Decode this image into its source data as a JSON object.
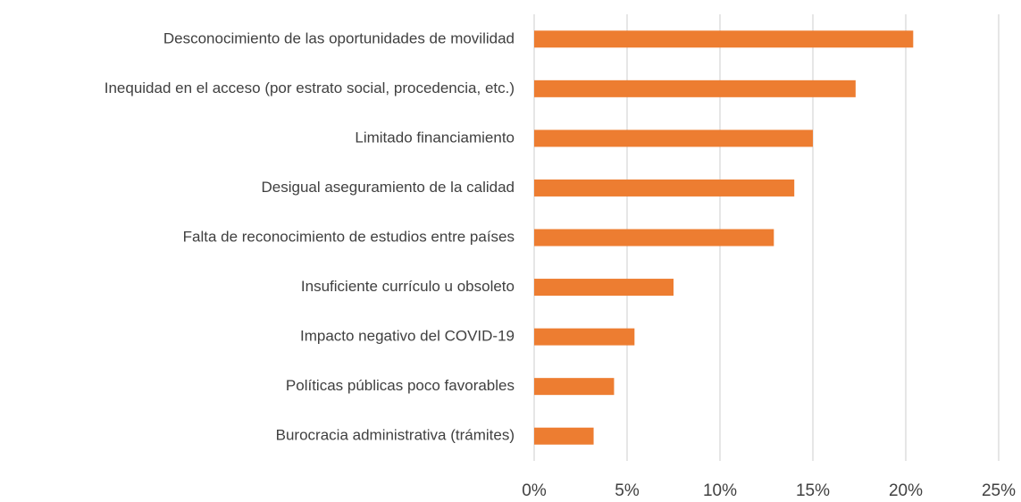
{
  "chart_data": {
    "type": "bar",
    "orientation": "horizontal",
    "categories": [
      "Desconocimiento de las oportunidades de movilidad",
      "Inequidad en el acceso (por estrato social, procedencia, etc.)",
      "Limitado financiamiento",
      "Desigual aseguramiento de la calidad",
      "Falta de reconocimiento de estudios entre países",
      "Insuficiente currículo u obsoleto",
      "Impacto negativo del COVID-19",
      "Políticas públicas poco favorables",
      "Burocracia administrativa (trámites)"
    ],
    "values": [
      20.4,
      17.3,
      15.0,
      14.0,
      12.9,
      7.5,
      5.4,
      4.3,
      3.2
    ],
    "color": "#ED7D31",
    "xlim": [
      0,
      25
    ],
    "xticks": [
      {
        "value": 0,
        "label": "0%"
      },
      {
        "value": 5,
        "label": "5%"
      },
      {
        "value": 10,
        "label": "10%"
      },
      {
        "value": 15,
        "label": "15%"
      },
      {
        "value": 20,
        "label": "20%"
      },
      {
        "value": 25,
        "label": "25%"
      }
    ],
    "grid": true
  }
}
